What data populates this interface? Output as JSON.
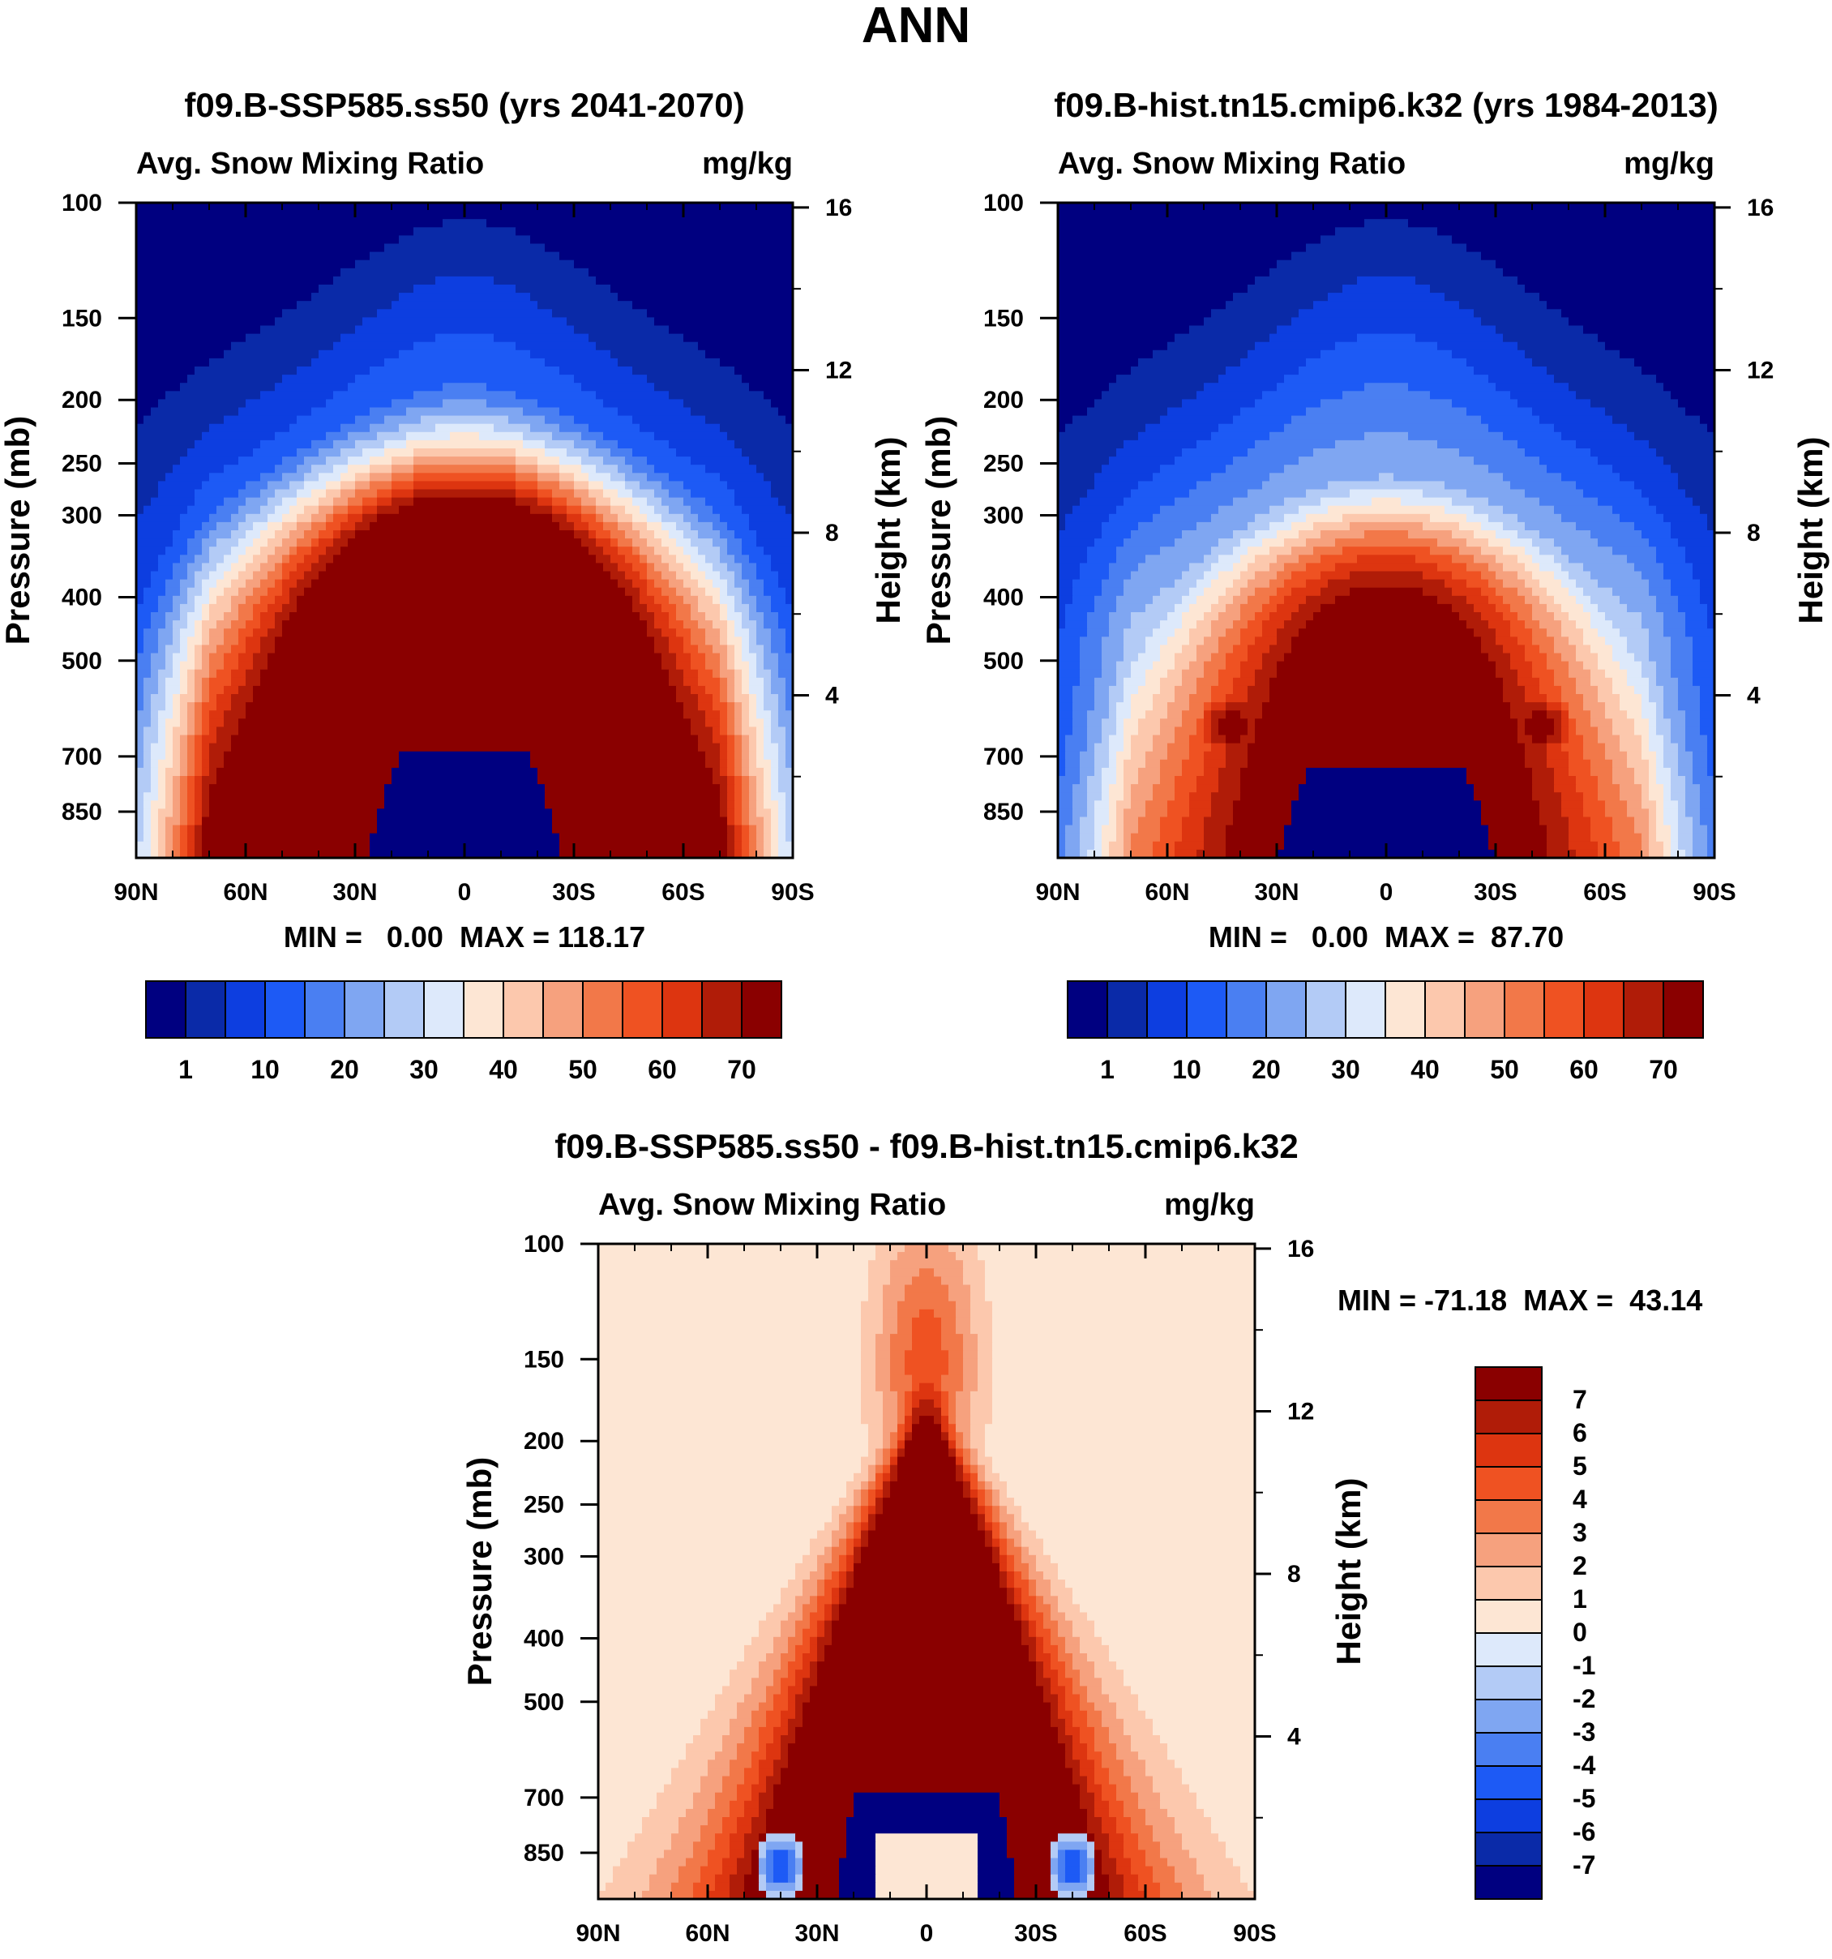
{
  "page_title": "ANN",
  "colors": {
    "abs_scale": [
      "#000080",
      "#0a2aa8",
      "#0d3ee0",
      "#1d5af5",
      "#4a7ff2",
      "#7fa6f2",
      "#b3cbf6",
      "#dde9fb",
      "#fde6d4",
      "#fcc8ad",
      "#f6a17e",
      "#f27849",
      "#ef5222",
      "#dd3510",
      "#b01c08",
      "#8a0000"
    ],
    "diff_scale": [
      "#000080",
      "#0a2aa8",
      "#0d3ee0",
      "#1d5af5",
      "#4a7ff2",
      "#7fa6f2",
      "#b3cbf6",
      "#dde9fb",
      "#fde6d4",
      "#fcc8ad",
      "#f6a17e",
      "#f27849",
      "#ef5222",
      "#dd3510",
      "#b01c08",
      "#8a0000"
    ]
  },
  "chart_data": [
    {
      "type": "heatmap",
      "title": "f09.B-SSP585.ss50 (yrs 2041-2070)",
      "left_label": "Avg. Snow Mixing Ratio",
      "right_label": "mg/kg",
      "xlabel": "",
      "ylabel": "Pressure (mb)",
      "y2label": "Height (km)",
      "x_ticks": [
        "90N",
        "60N",
        "30N",
        "0",
        "30S",
        "60S",
        "90S"
      ],
      "y_ticks": [
        "100",
        "150",
        "200",
        "250",
        "300",
        "400",
        "500",
        "700",
        "850"
      ],
      "y_tick_values": [
        100,
        150,
        200,
        250,
        300,
        400,
        500,
        700,
        850
      ],
      "y2_ticks": [
        "16",
        "12",
        "8",
        "4"
      ],
      "y2_tick_values": [
        16,
        12,
        8,
        4
      ],
      "ylim": [
        1000,
        100
      ],
      "stats": {
        "min_label": "MIN =",
        "min_value": "0.00",
        "max_label": "MAX =",
        "max_value": "118.17"
      },
      "features": {
        "core_value": 118.17,
        "core_top_hpa": 300,
        "cap_hpa": 690,
        "cap_half_width_deg": 18
      },
      "colorbar": {
        "orientation": "horizontal",
        "labels": [
          "1",
          "10",
          "20",
          "30",
          "40",
          "50",
          "60",
          "70"
        ],
        "label_positions": [
          1,
          3,
          5,
          7,
          9,
          11,
          13,
          15
        ]
      }
    },
    {
      "type": "heatmap",
      "title": "f09.B-hist.tn15.cmip6.k32 (yrs 1984-2013)",
      "left_label": "Avg. Snow Mixing Ratio",
      "right_label": "mg/kg",
      "xlabel": "",
      "ylabel": "Pressure (mb)",
      "y2label": "Height (km)",
      "x_ticks": [
        "90N",
        "60N",
        "30N",
        "0",
        "30S",
        "60S",
        "90S"
      ],
      "y_ticks": [
        "100",
        "150",
        "200",
        "250",
        "300",
        "400",
        "500",
        "700",
        "850"
      ],
      "y_tick_values": [
        100,
        150,
        200,
        250,
        300,
        400,
        500,
        700,
        850
      ],
      "y2_ticks": [
        "16",
        "12",
        "8",
        "4"
      ],
      "y2_tick_values": [
        16,
        12,
        8,
        4
      ],
      "ylim": [
        1000,
        100
      ],
      "stats": {
        "min_label": "MIN =",
        "min_value": "0.00",
        "max_label": "MAX =",
        "max_value": "87.70"
      },
      "features": {
        "core_value": 87.7,
        "core_top_hpa": 350,
        "cap_hpa": 730,
        "cap_half_width_deg": 22
      },
      "colorbar": {
        "orientation": "horizontal",
        "labels": [
          "1",
          "10",
          "20",
          "30",
          "40",
          "50",
          "60",
          "70"
        ],
        "label_positions": [
          1,
          3,
          5,
          7,
          9,
          11,
          13,
          15
        ]
      }
    },
    {
      "type": "heatmap",
      "title": "f09.B-SSP585.ss50 - f09.B-hist.tn15.cmip6.k32",
      "left_label": "Avg. Snow Mixing Ratio",
      "right_label": "mg/kg",
      "xlabel": "",
      "ylabel": "Pressure (mb)",
      "y2label": "Height (km)",
      "x_ticks": [
        "90N",
        "60N",
        "30N",
        "0",
        "30S",
        "60S",
        "90S"
      ],
      "y_ticks": [
        "100",
        "150",
        "200",
        "250",
        "300",
        "400",
        "500",
        "700",
        "850"
      ],
      "y_tick_values": [
        100,
        150,
        200,
        250,
        300,
        400,
        500,
        700,
        850
      ],
      "y2_ticks": [
        "16",
        "12",
        "8",
        "4"
      ],
      "y2_tick_values": [
        16,
        12,
        8,
        4
      ],
      "ylim": [
        1000,
        100
      ],
      "stats": {
        "min_label": "MIN =",
        "min_value": "-71.18",
        "max_label": "MAX =",
        "max_value": "43.14"
      },
      "features": {
        "core_value": 43.14,
        "core_top_hpa": 200,
        "cap_hpa": 690,
        "cap_half_width_deg": 20
      },
      "colorbar": {
        "orientation": "vertical",
        "labels": [
          "7",
          "6",
          "5",
          "4",
          "3",
          "2",
          "1",
          "0",
          "-1",
          "-2",
          "-3",
          "-4",
          "-5",
          "-6",
          "-7"
        ]
      }
    }
  ]
}
